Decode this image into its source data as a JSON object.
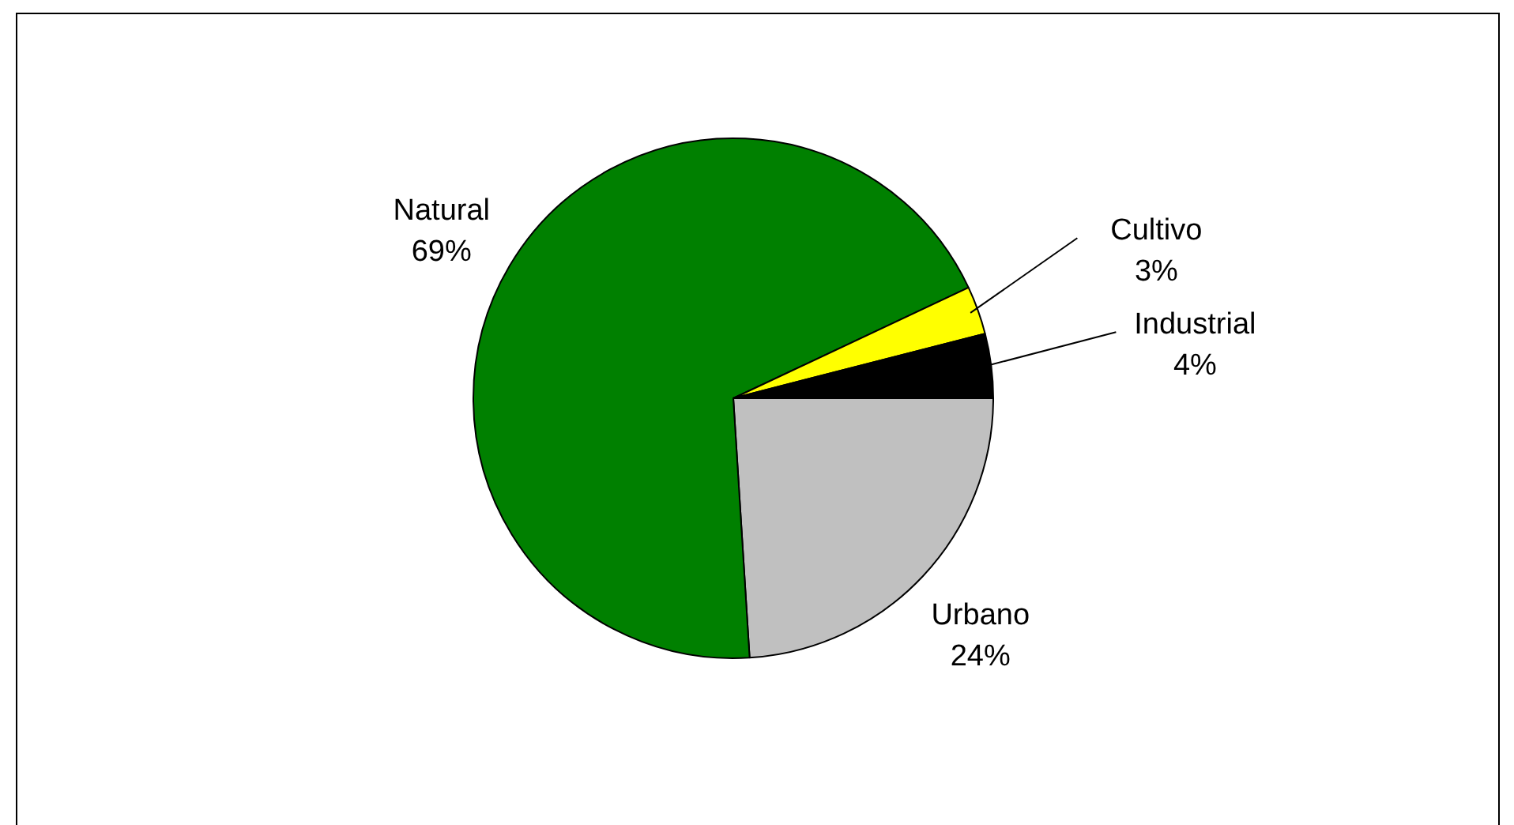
{
  "chart_data": {
    "type": "pie",
    "categories": [
      "Urbano",
      "Natural",
      "Cultivo",
      "Industrial"
    ],
    "values": [
      24,
      69,
      3,
      4
    ],
    "value_labels": [
      "24%",
      "69%",
      "3%",
      "4%"
    ],
    "colors": [
      "#c0c0c0",
      "#008000",
      "#ffff00",
      "#000000"
    ],
    "legend": false
  }
}
